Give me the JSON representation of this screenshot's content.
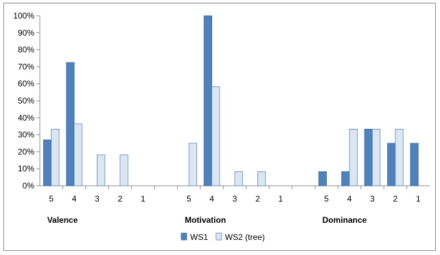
{
  "chart_data": {
    "type": "bar",
    "title": "",
    "xlabel": "",
    "ylabel": "",
    "ylim": [
      0,
      1
    ],
    "yticks": [
      "0%",
      "10%",
      "20%",
      "30%",
      "40%",
      "50%",
      "60%",
      "70%",
      "80%",
      "90%",
      "100%"
    ],
    "groups": [
      "Valence",
      "Motivation",
      "Dominance"
    ],
    "categories": [
      "5",
      "4",
      "3",
      "2",
      "1"
    ],
    "series": [
      {
        "name": "WS1",
        "color": "#4f81bd",
        "values": [
          [
            0.27,
            0.725,
            0,
            0,
            0
          ],
          [
            0,
            1.0,
            0,
            0,
            0
          ],
          [
            0.083,
            0.083,
            0.333,
            0.25,
            0.25
          ]
        ]
      },
      {
        "name": "WS2 (tree)",
        "color": "#dce6f2",
        "values": [
          [
            0.333,
            0.364,
            0.182,
            0.182,
            0
          ],
          [
            0.25,
            0.583,
            0.083,
            0.083,
            0
          ],
          [
            0,
            0.333,
            0.333,
            0.333,
            0
          ]
        ]
      }
    ],
    "legend": "bottom",
    "grid": false
  }
}
